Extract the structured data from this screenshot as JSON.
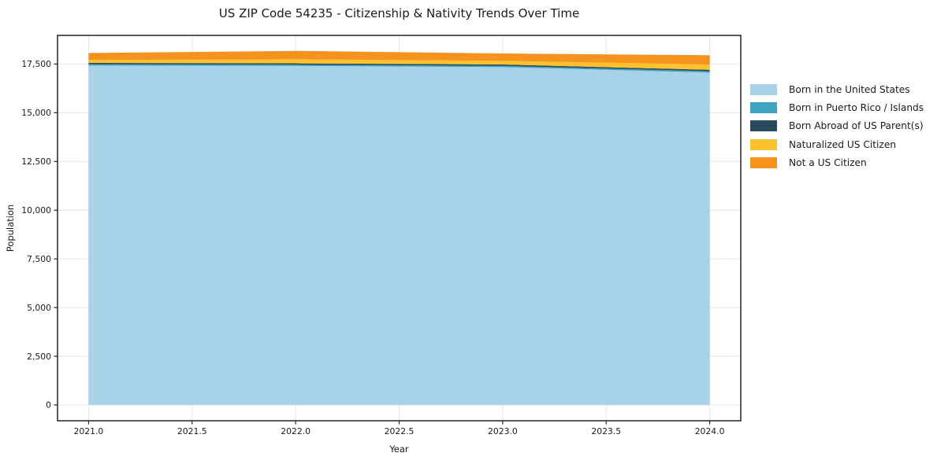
{
  "title": "US ZIP Code 54235 - Citizenship & Nativity Trends Over Time",
  "chart_data": {
    "type": "area",
    "stacked": true,
    "title": "US ZIP Code 54235 - Citizenship & Nativity Trends Over Time",
    "xlabel": "Year",
    "ylabel": "Population",
    "x": [
      2021,
      2022,
      2023,
      2024
    ],
    "series": [
      {
        "name": "Born in the United States",
        "color": "#a7d2e8",
        "values": [
          17420,
          17400,
          17340,
          17060
        ]
      },
      {
        "name": "Born in Puerto Rico / Islands",
        "color": "#3fa5c2",
        "values": [
          70,
          65,
          65,
          70
        ]
      },
      {
        "name": "Born Abroad of US Parent(s)",
        "color": "#294a5c",
        "values": [
          70,
          70,
          70,
          75
        ]
      },
      {
        "name": "Naturalized US Citizen",
        "color": "#fbc22d",
        "values": [
          145,
          210,
          190,
          270
        ]
      },
      {
        "name": "Not a US Citizen",
        "color": "#f6921e",
        "values": [
          360,
          430,
          375,
          475
        ]
      }
    ],
    "totals": [
      18065,
      18175,
      18040,
      17950
    ],
    "xlim": [
      2020.85,
      2024.15
    ],
    "ylim": [
      -810,
      18970
    ],
    "x_ticks": [
      2021.0,
      2021.5,
      2022.0,
      2022.5,
      2023.0,
      2023.5,
      2024.0
    ],
    "x_tick_labels": [
      "2021.0",
      "2021.5",
      "2022.0",
      "2022.5",
      "2023.0",
      "2023.5",
      "2024.0"
    ],
    "y_ticks": [
      0,
      2500,
      5000,
      7500,
      10000,
      12500,
      15000,
      17500
    ],
    "y_tick_labels": [
      "0",
      "2,500",
      "5,000",
      "7,500",
      "10,000",
      "12,500",
      "15,000",
      "17,500"
    ],
    "grid": true,
    "legend_position": "right-outside",
    "colors": {
      "grid": "#e6e6e6",
      "spine": "#222222",
      "tick_text": "#1a1a1a",
      "background": "#ffffff"
    }
  }
}
